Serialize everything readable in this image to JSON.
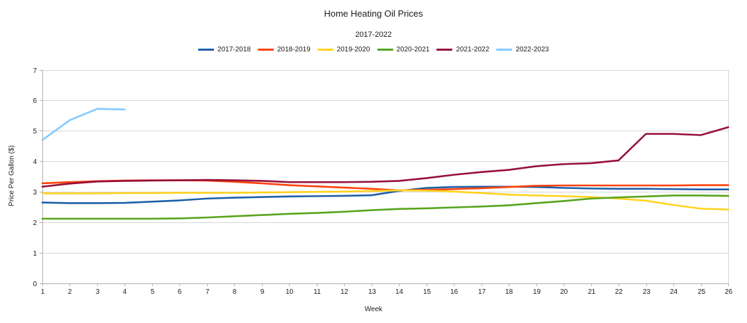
{
  "title": "Home Heating Oil Prices",
  "subtitle": "2017-2022",
  "chart_data": {
    "type": "line",
    "title": "Home Heating Oil Prices",
    "subtitle": "2017-2022",
    "xlabel": "Week",
    "ylabel": "Price Per Gallon ($)",
    "x": [
      1,
      2,
      3,
      4,
      5,
      6,
      7,
      8,
      9,
      10,
      11,
      12,
      13,
      14,
      15,
      16,
      17,
      18,
      19,
      20,
      21,
      22,
      23,
      24,
      25,
      26
    ],
    "ylim": [
      0,
      7
    ],
    "yticks": [
      0,
      1,
      2,
      3,
      4,
      5,
      6,
      7
    ],
    "grid": true,
    "legend_position": "top",
    "colors": {
      "grid": "#d6d6d6",
      "axis": "#b0b0b0",
      "text": "#1a1a1a"
    },
    "series": [
      {
        "name": "2017-2018",
        "color": "#1F5FA8",
        "values": [
          2.65,
          2.63,
          2.63,
          2.64,
          2.68,
          2.72,
          2.78,
          2.81,
          2.83,
          2.85,
          2.86,
          2.87,
          2.89,
          3.03,
          3.13,
          3.16,
          3.17,
          3.17,
          3.16,
          3.13,
          3.11,
          3.1,
          3.1,
          3.09,
          3.08,
          3.08
        ]
      },
      {
        "name": "2018-2019",
        "color": "#FF420E",
        "values": [
          3.28,
          3.32,
          3.35,
          3.37,
          3.38,
          3.38,
          3.37,
          3.33,
          3.28,
          3.22,
          3.18,
          3.14,
          3.1,
          3.05,
          3.07,
          3.09,
          3.12,
          3.16,
          3.2,
          3.21,
          3.21,
          3.21,
          3.21,
          3.21,
          3.22,
          3.22
        ]
      },
      {
        "name": "2019-2020",
        "color": "#FFD320",
        "values": [
          2.95,
          2.95,
          2.95,
          2.96,
          2.96,
          2.97,
          2.97,
          2.97,
          2.98,
          2.99,
          3.0,
          3.01,
          3.03,
          3.05,
          3.04,
          3.01,
          2.96,
          2.91,
          2.88,
          2.86,
          2.83,
          2.78,
          2.71,
          2.57,
          2.45,
          2.42
        ]
      },
      {
        "name": "2020-2021",
        "color": "#58A41C",
        "values": [
          2.12,
          2.12,
          2.12,
          2.12,
          2.12,
          2.13,
          2.16,
          2.2,
          2.24,
          2.28,
          2.31,
          2.35,
          2.4,
          2.44,
          2.46,
          2.49,
          2.52,
          2.56,
          2.63,
          2.7,
          2.78,
          2.82,
          2.85,
          2.88,
          2.88,
          2.87
        ]
      },
      {
        "name": "2021-2022",
        "color": "#96103A",
        "values": [
          3.17,
          3.27,
          3.34,
          3.36,
          3.37,
          3.38,
          3.39,
          3.38,
          3.36,
          3.32,
          3.32,
          3.32,
          3.33,
          3.36,
          3.45,
          3.56,
          3.65,
          3.72,
          3.84,
          3.91,
          3.94,
          4.03,
          4.9,
          4.9,
          4.86,
          5.12
        ]
      },
      {
        "name": "2022-2023",
        "color": "#83CAFF",
        "values": [
          4.7,
          5.35,
          5.72,
          5.7,
          null,
          null,
          null,
          null,
          null,
          null,
          null,
          null,
          null,
          null,
          null,
          null,
          null,
          null,
          null,
          null,
          null,
          null,
          null,
          null,
          null,
          null
        ]
      }
    ]
  }
}
